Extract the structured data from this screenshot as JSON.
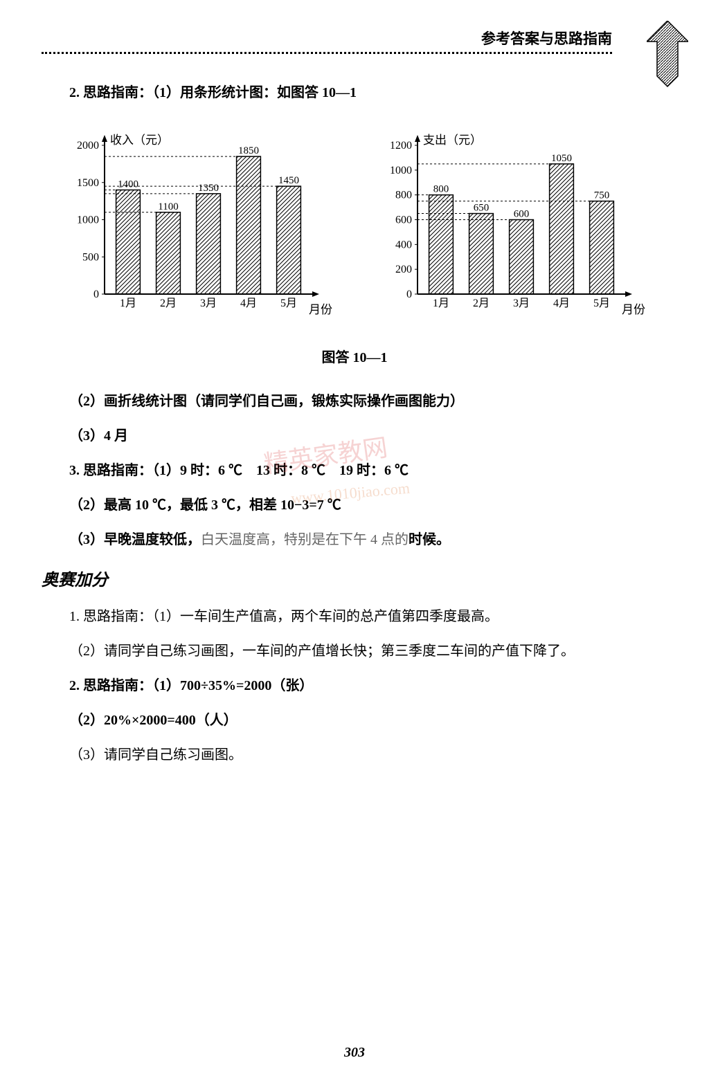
{
  "header": {
    "title": "参考答案与思路指南"
  },
  "watermark": {
    "main": "精英家教网",
    "url": "www.1010jiao.com"
  },
  "lines": {
    "l1": "2. 思路指南：（1）用条形统计图：如图答 10—1",
    "l2": "（2）画折线统计图（请同学们自己画，锻炼实际操作画图能力）",
    "l3": "（3）4 月",
    "l4a": "3. 思路指南：（1）9 时：6 ℃　13 时：8 ℃　19 时：6 ℃",
    "l5": "（2）最高 10 ℃，最低 3 ℃，相差 10−3=7 ℃",
    "l6a": "（3）早晚温度较低，",
    "l6b": "白天温度高，特别是在下午 4 点的",
    "l6c": "时候。",
    "sec": "奥赛加分",
    "l7": "1. 思路指南：（1）一车间生产值高，两个车间的总产值第四季度最高。",
    "l8": "（2）请同学自己练习画图，一车间的产值增长快；第三季度二车间的产值下降了。",
    "l9": "2. 思路指南：（1）700÷35%=2000（张）",
    "l10": "（2）20%×2000=400（人）",
    "l11": "（3）请同学自己练习画图。"
  },
  "chart_caption": "图答 10—1",
  "chart1": {
    "type": "bar",
    "y_label": "收入（元）",
    "x_label": "月份",
    "categories": [
      "1月",
      "2月",
      "3月",
      "4月",
      "5月"
    ],
    "values": [
      1400,
      1100,
      1350,
      1850,
      1450
    ],
    "value_labels": [
      "1400",
      "1100",
      "1350",
      "1850",
      "1450"
    ],
    "ylim": [
      0,
      2000
    ],
    "ytick_step": 500,
    "yticks": [
      "0",
      "500",
      "1000",
      "1500",
      "2000"
    ],
    "axis_color": "#000",
    "bar_stroke": "#000",
    "bar_fill": "#fff"
  },
  "chart2": {
    "type": "bar",
    "y_label": "支出（元）",
    "x_label": "月份",
    "categories": [
      "1月",
      "2月",
      "3月",
      "4月",
      "5月"
    ],
    "values": [
      800,
      650,
      600,
      1050,
      750
    ],
    "value_labels": [
      "800",
      "650",
      "600",
      "1050",
      "750"
    ],
    "ylim": [
      0,
      1200
    ],
    "ytick_step": 200,
    "yticks": [
      "0",
      "200",
      "400",
      "600",
      "800",
      "1000",
      "1200"
    ],
    "axis_color": "#000",
    "bar_stroke": "#000",
    "bar_fill": "#fff"
  },
  "page_number": "303"
}
